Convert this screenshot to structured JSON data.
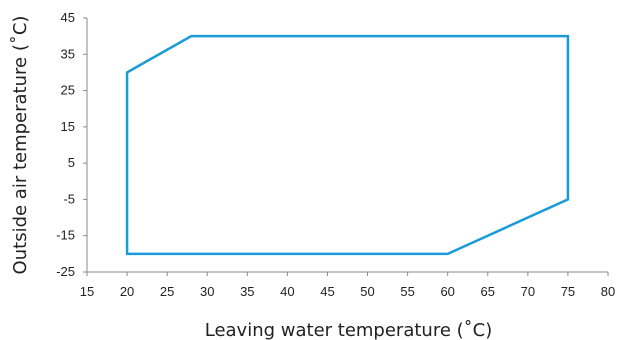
{
  "chart_data": {
    "type": "line",
    "title": "",
    "xlabel": "Leaving water temperature (˚C)",
    "ylabel": "Outside air temperature (˚C)",
    "xlim": [
      15,
      80
    ],
    "ylim": [
      -25,
      45
    ],
    "x_ticks": [
      15,
      20,
      25,
      30,
      35,
      40,
      45,
      50,
      55,
      60,
      65,
      70,
      75,
      80
    ],
    "y_ticks": [
      45,
      35,
      25,
      15,
      5,
      -5,
      -15,
      -25
    ],
    "grid": false,
    "series": [
      {
        "color": "#1a9bd7",
        "closed": true,
        "points": [
          {
            "x": 20,
            "y": -20
          },
          {
            "x": 20,
            "y": 30
          },
          {
            "x": 28,
            "y": 40
          },
          {
            "x": 75,
            "y": 40
          },
          {
            "x": 75,
            "y": -5
          },
          {
            "x": 60,
            "y": -20
          }
        ]
      }
    ]
  }
}
